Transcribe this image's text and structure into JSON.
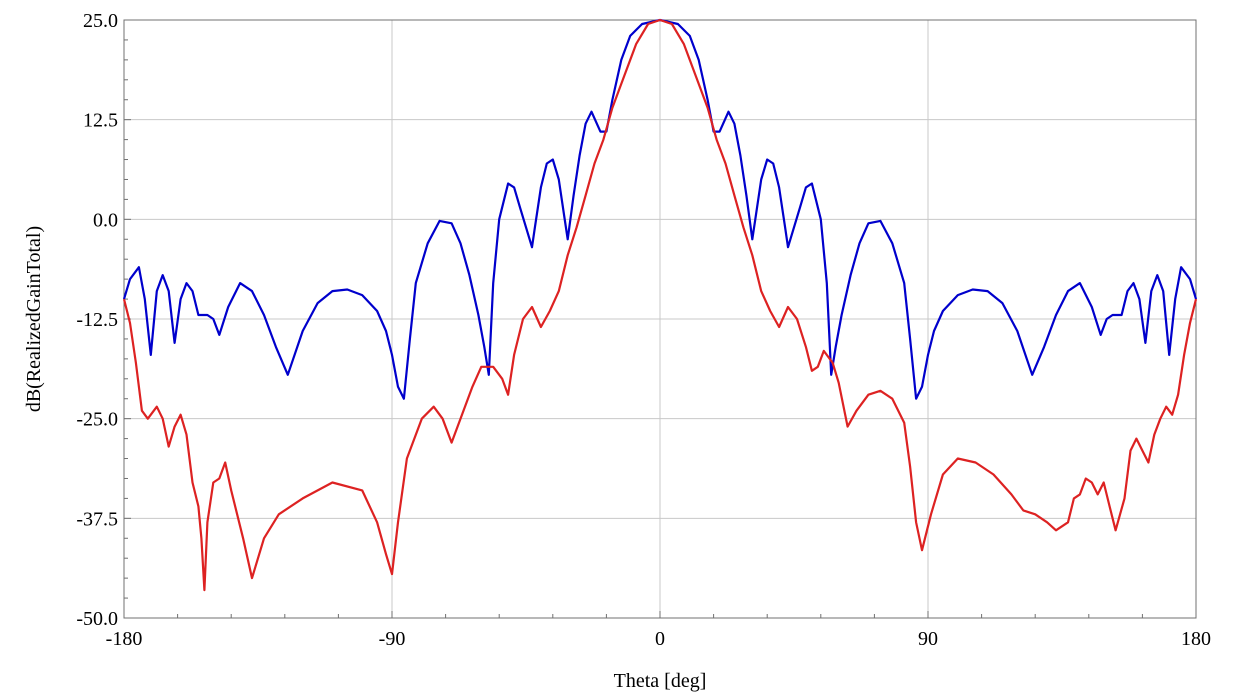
{
  "chart_data": {
    "type": "line",
    "title": "",
    "xlabel": "Theta [deg]",
    "ylabel": "dB(RealizedGainTotal)",
    "xlim": [
      -180,
      180
    ],
    "ylim": [
      -50,
      25
    ],
    "grid": true,
    "x_ticks": [
      -180,
      -90,
      0,
      90,
      180
    ],
    "x_tick_labels": [
      "-180",
      "-90",
      "0",
      "90",
      "180"
    ],
    "y_ticks": [
      25,
      12.5,
      0,
      -12.5,
      -25,
      -37.5,
      -50
    ],
    "y_tick_labels": [
      "25.0",
      "12.5",
      "0.0",
      "-12.5",
      "-25.0",
      "-37.5",
      "-50.0"
    ],
    "series": [
      {
        "color": "#0000cc",
        "points": [
          [
            -180,
            -10
          ],
          [
            -178,
            -7.5
          ],
          [
            -175,
            -6
          ],
          [
            -173,
            -10
          ],
          [
            -171,
            -17
          ],
          [
            -169,
            -9
          ],
          [
            -167,
            -7
          ],
          [
            -165,
            -9
          ],
          [
            -163,
            -15.5
          ],
          [
            -161,
            -10
          ],
          [
            -159,
            -8
          ],
          [
            -157,
            -9
          ],
          [
            -155,
            -12
          ],
          [
            -152,
            -12
          ],
          [
            -150,
            -12.5
          ],
          [
            -148,
            -14.5
          ],
          [
            -145,
            -11
          ],
          [
            -141,
            -8
          ],
          [
            -137,
            -9
          ],
          [
            -133,
            -12
          ],
          [
            -129,
            -16
          ],
          [
            -125,
            -19.5
          ],
          [
            -120,
            -14
          ],
          [
            -115,
            -10.5
          ],
          [
            -110,
            -9
          ],
          [
            -105,
            -8.8
          ],
          [
            -100,
            -9.5
          ],
          [
            -95,
            -11.5
          ],
          [
            -92,
            -14
          ],
          [
            -90,
            -17
          ],
          [
            -88,
            -21
          ],
          [
            -86,
            -22.5
          ],
          [
            -84,
            -15
          ],
          [
            -82,
            -8
          ],
          [
            -78,
            -3
          ],
          [
            -74,
            -0.2
          ],
          [
            -70,
            -0.5
          ],
          [
            -67,
            -3
          ],
          [
            -64,
            -7
          ],
          [
            -61,
            -12
          ],
          [
            -59,
            -16
          ],
          [
            -57.5,
            -19.5
          ],
          [
            -56,
            -8
          ],
          [
            -54,
            0
          ],
          [
            -51,
            4.5
          ],
          [
            -49,
            4
          ],
          [
            -47,
            1.5
          ],
          [
            -45,
            -1
          ],
          [
            -43,
            -3.5
          ],
          [
            -42,
            -1
          ],
          [
            -40,
            4
          ],
          [
            -38,
            7
          ],
          [
            -36,
            7.5
          ],
          [
            -34,
            5
          ],
          [
            -32,
            0
          ],
          [
            -31,
            -2.5
          ],
          [
            -29,
            3
          ],
          [
            -27,
            8
          ],
          [
            -25,
            12
          ],
          [
            -23,
            13.5
          ],
          [
            -20,
            11
          ],
          [
            -18,
            11
          ],
          [
            -16,
            15
          ],
          [
            -13,
            20
          ],
          [
            -10,
            23
          ],
          [
            -6,
            24.5
          ],
          [
            0,
            25
          ],
          [
            6,
            24.5
          ],
          [
            10,
            23
          ],
          [
            13,
            20
          ],
          [
            16,
            15
          ],
          [
            18,
            11
          ],
          [
            20,
            11
          ],
          [
            23,
            13.5
          ],
          [
            25,
            12
          ],
          [
            27,
            8
          ],
          [
            29,
            3
          ],
          [
            31,
            -2.5
          ],
          [
            32,
            0
          ],
          [
            34,
            5
          ],
          [
            36,
            7.5
          ],
          [
            38,
            7
          ],
          [
            40,
            4
          ],
          [
            42,
            -1
          ],
          [
            43,
            -3.5
          ],
          [
            45,
            -1
          ],
          [
            47,
            1.5
          ],
          [
            49,
            4
          ],
          [
            51,
            4.5
          ],
          [
            54,
            0
          ],
          [
            56,
            -8
          ],
          [
            57.5,
            -19.5
          ],
          [
            59,
            -16
          ],
          [
            61,
            -12
          ],
          [
            64,
            -7
          ],
          [
            67,
            -3
          ],
          [
            70,
            -0.5
          ],
          [
            74,
            -0.2
          ],
          [
            78,
            -3
          ],
          [
            82,
            -8
          ],
          [
            84,
            -15
          ],
          [
            86,
            -22.5
          ],
          [
            88,
            -21
          ],
          [
            90,
            -17
          ],
          [
            92,
            -14
          ],
          [
            95,
            -11.5
          ],
          [
            100,
            -9.5
          ],
          [
            105,
            -8.8
          ],
          [
            110,
            -9
          ],
          [
            115,
            -10.5
          ],
          [
            120,
            -14
          ],
          [
            125,
            -19.5
          ],
          [
            129,
            -16
          ],
          [
            133,
            -12
          ],
          [
            137,
            -9
          ],
          [
            141,
            -8
          ],
          [
            145,
            -11
          ],
          [
            148,
            -14.5
          ],
          [
            150,
            -12.5
          ],
          [
            152,
            -12
          ],
          [
            155,
            -12
          ],
          [
            157,
            -9
          ],
          [
            159,
            -8
          ],
          [
            161,
            -10
          ],
          [
            163,
            -15.5
          ],
          [
            165,
            -9
          ],
          [
            167,
            -7
          ],
          [
            169,
            -9
          ],
          [
            171,
            -17
          ],
          [
            173,
            -10
          ],
          [
            175,
            -6
          ],
          [
            178,
            -7.5
          ],
          [
            180,
            -10
          ]
        ]
      },
      {
        "color": "#dd2222",
        "points": [
          [
            -180,
            -10
          ],
          [
            -178,
            -13
          ],
          [
            -176,
            -18
          ],
          [
            -174,
            -24
          ],
          [
            -172,
            -25
          ],
          [
            -169,
            -23.5
          ],
          [
            -167,
            -25
          ],
          [
            -165,
            -28.5
          ],
          [
            -163,
            -26
          ],
          [
            -161,
            -24.5
          ],
          [
            -159,
            -27
          ],
          [
            -157,
            -33
          ],
          [
            -155,
            -36
          ],
          [
            -154,
            -40
          ],
          [
            -153,
            -46.5
          ],
          [
            -152,
            -38
          ],
          [
            -150,
            -33
          ],
          [
            -148,
            -32.5
          ],
          [
            -146,
            -30.5
          ],
          [
            -144,
            -34
          ],
          [
            -140,
            -40
          ],
          [
            -137,
            -45
          ],
          [
            -133,
            -40
          ],
          [
            -128,
            -37
          ],
          [
            -120,
            -35
          ],
          [
            -110,
            -33
          ],
          [
            -100,
            -34
          ],
          [
            -95,
            -38
          ],
          [
            -92,
            -42
          ],
          [
            -90,
            -44.5
          ],
          [
            -88,
            -38
          ],
          [
            -85,
            -30
          ],
          [
            -80,
            -25
          ],
          [
            -76,
            -23.5
          ],
          [
            -73,
            -25
          ],
          [
            -70,
            -28
          ],
          [
            -67,
            -25
          ],
          [
            -63,
            -21
          ],
          [
            -60,
            -18.5
          ],
          [
            -56,
            -18.5
          ],
          [
            -53,
            -20
          ],
          [
            -51,
            -22
          ],
          [
            -49,
            -17
          ],
          [
            -46,
            -12.5
          ],
          [
            -43,
            -11
          ],
          [
            -40,
            -13.5
          ],
          [
            -37,
            -11.5
          ],
          [
            -34,
            -9
          ],
          [
            -31,
            -4.5
          ],
          [
            -28,
            -1
          ],
          [
            -25,
            3
          ],
          [
            -22,
            7
          ],
          [
            -19,
            10
          ],
          [
            -16,
            14
          ],
          [
            -12,
            18
          ],
          [
            -8,
            22
          ],
          [
            -4,
            24.5
          ],
          [
            0,
            25
          ],
          [
            4,
            24.5
          ],
          [
            8,
            22
          ],
          [
            12,
            18
          ],
          [
            16,
            14
          ],
          [
            19,
            10
          ],
          [
            22,
            7
          ],
          [
            25,
            3
          ],
          [
            28,
            -1
          ],
          [
            31,
            -4.5
          ],
          [
            34,
            -9
          ],
          [
            37,
            -11.5
          ],
          [
            40,
            -13.5
          ],
          [
            43,
            -11
          ],
          [
            46,
            -12.5
          ],
          [
            49,
            -16
          ],
          [
            51,
            -19
          ],
          [
            53,
            -18.5
          ],
          [
            55,
            -16.5
          ],
          [
            58,
            -18
          ],
          [
            60,
            -20.5
          ],
          [
            63,
            -26
          ],
          [
            66,
            -24
          ],
          [
            70,
            -22
          ],
          [
            74,
            -21.5
          ],
          [
            78,
            -22.5
          ],
          [
            82,
            -25.5
          ],
          [
            84,
            -31
          ],
          [
            86,
            -38
          ],
          [
            88,
            -41.5
          ],
          [
            91,
            -37
          ],
          [
            95,
            -32
          ],
          [
            100,
            -30
          ],
          [
            106,
            -30.5
          ],
          [
            112,
            -32
          ],
          [
            118,
            -34.5
          ],
          [
            122,
            -36.5
          ],
          [
            126,
            -37
          ],
          [
            130,
            -38
          ],
          [
            133,
            -39
          ],
          [
            137,
            -38
          ],
          [
            139,
            -35
          ],
          [
            141,
            -34.5
          ],
          [
            143,
            -32.5
          ],
          [
            145,
            -33
          ],
          [
            147,
            -34.5
          ],
          [
            149,
            -33
          ],
          [
            151,
            -36
          ],
          [
            153,
            -39
          ],
          [
            156,
            -35
          ],
          [
            158,
            -29
          ],
          [
            160,
            -27.5
          ],
          [
            162,
            -29
          ],
          [
            164,
            -30.5
          ],
          [
            166,
            -27
          ],
          [
            168,
            -25
          ],
          [
            170,
            -23.5
          ],
          [
            172,
            -24.5
          ],
          [
            174,
            -22
          ],
          [
            176,
            -17
          ],
          [
            178,
            -13
          ],
          [
            180,
            -10
          ]
        ]
      }
    ]
  }
}
